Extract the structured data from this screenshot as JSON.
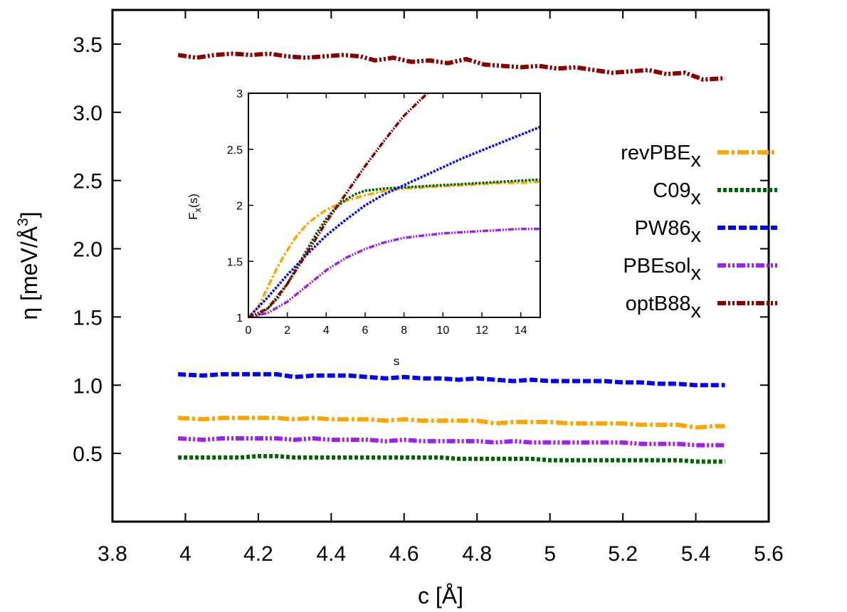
{
  "chart_data": [
    {
      "id": "main",
      "type": "line",
      "title": "",
      "xlabel": "c [Å]",
      "ylabel": {
        "prefix": "η [meV/Å",
        "superscript": "3",
        "suffix": "]"
      },
      "xlim": [
        3.8,
        5.6
      ],
      "ylim": [
        0.0,
        3.75
      ],
      "xticks": [
        "3.8",
        "4",
        "4.2",
        "4.4",
        "4.6",
        "4.8",
        "5",
        "5.2",
        "5.4",
        "5.6"
      ],
      "yticks": [
        "0.5",
        "1.0",
        "1.5",
        "2.0",
        "2.5",
        "3.0",
        "3.5"
      ],
      "legend_position": "right",
      "series": [
        {
          "name": "revPBE",
          "subscript": "x",
          "color": "#ffa500",
          "dash": "dashdot",
          "x": [
            3.98,
            4.05,
            4.1,
            4.15,
            4.2,
            4.25,
            4.3,
            4.35,
            4.4,
            4.45,
            4.5,
            4.55,
            4.6,
            4.65,
            4.7,
            4.75,
            4.8,
            4.85,
            4.9,
            4.95,
            5.0,
            5.05,
            5.1,
            5.15,
            5.2,
            5.25,
            5.3,
            5.35,
            5.4,
            5.45,
            5.48
          ],
          "y": [
            0.76,
            0.75,
            0.76,
            0.76,
            0.76,
            0.76,
            0.75,
            0.76,
            0.75,
            0.75,
            0.75,
            0.74,
            0.75,
            0.74,
            0.74,
            0.74,
            0.74,
            0.72,
            0.73,
            0.73,
            0.73,
            0.72,
            0.72,
            0.72,
            0.72,
            0.71,
            0.71,
            0.71,
            0.69,
            0.7,
            0.7
          ]
        },
        {
          "name": "C09",
          "subscript": "x",
          "color": "#006400",
          "dash": "dotted",
          "x": [
            3.98,
            4.05,
            4.1,
            4.15,
            4.2,
            4.25,
            4.3,
            4.35,
            4.4,
            4.45,
            4.5,
            4.55,
            4.6,
            4.65,
            4.7,
            4.75,
            4.8,
            4.85,
            4.9,
            4.95,
            5.0,
            5.05,
            5.1,
            5.15,
            5.2,
            5.25,
            5.3,
            5.35,
            5.4,
            5.45,
            5.48
          ],
          "y": [
            0.47,
            0.47,
            0.47,
            0.47,
            0.48,
            0.48,
            0.47,
            0.47,
            0.47,
            0.47,
            0.47,
            0.47,
            0.47,
            0.47,
            0.47,
            0.46,
            0.46,
            0.46,
            0.46,
            0.46,
            0.45,
            0.45,
            0.45,
            0.45,
            0.45,
            0.45,
            0.45,
            0.45,
            0.44,
            0.44,
            0.44
          ]
        },
        {
          "name": "PW86",
          "subscript": "x",
          "color": "#0000ff",
          "dash": "dashed",
          "x": [
            3.98,
            4.05,
            4.1,
            4.15,
            4.2,
            4.25,
            4.3,
            4.35,
            4.4,
            4.45,
            4.5,
            4.55,
            4.6,
            4.65,
            4.7,
            4.75,
            4.8,
            4.85,
            4.9,
            4.95,
            5.0,
            5.05,
            5.1,
            5.15,
            5.2,
            5.25,
            5.3,
            5.35,
            5.4,
            5.45,
            5.48
          ],
          "y": [
            1.08,
            1.07,
            1.08,
            1.08,
            1.08,
            1.08,
            1.06,
            1.07,
            1.07,
            1.07,
            1.06,
            1.05,
            1.06,
            1.05,
            1.05,
            1.04,
            1.05,
            1.04,
            1.03,
            1.04,
            1.03,
            1.03,
            1.03,
            1.03,
            1.02,
            1.02,
            1.01,
            1.01,
            1.0,
            1.0,
            1.0
          ]
        },
        {
          "name": "PBEsol",
          "subscript": "x",
          "color": "#a020f0",
          "dash": "dashdotdot",
          "x": [
            3.98,
            4.05,
            4.1,
            4.15,
            4.2,
            4.25,
            4.3,
            4.35,
            4.4,
            4.45,
            4.5,
            4.55,
            4.6,
            4.65,
            4.7,
            4.75,
            4.8,
            4.85,
            4.9,
            4.95,
            5.0,
            5.05,
            5.1,
            5.15,
            5.2,
            5.25,
            5.3,
            5.35,
            5.4,
            5.45,
            5.48
          ],
          "y": [
            0.61,
            0.6,
            0.61,
            0.61,
            0.61,
            0.61,
            0.6,
            0.61,
            0.6,
            0.6,
            0.6,
            0.59,
            0.6,
            0.59,
            0.59,
            0.59,
            0.59,
            0.58,
            0.59,
            0.58,
            0.58,
            0.58,
            0.58,
            0.58,
            0.58,
            0.57,
            0.57,
            0.57,
            0.56,
            0.56,
            0.56
          ]
        },
        {
          "name": "optB88",
          "subscript": "x",
          "color": "#8b0000",
          "dash": "dashdotdot",
          "x": [
            3.98,
            4.03,
            4.08,
            4.13,
            4.18,
            4.23,
            4.28,
            4.33,
            4.38,
            4.43,
            4.48,
            4.52,
            4.57,
            4.62,
            4.67,
            4.72,
            4.77,
            4.82,
            4.87,
            4.92,
            4.97,
            5.02,
            5.07,
            5.12,
            5.17,
            5.22,
            5.27,
            5.32,
            5.37,
            5.42,
            5.48
          ],
          "y": [
            3.42,
            3.4,
            3.42,
            3.43,
            3.42,
            3.43,
            3.41,
            3.4,
            3.41,
            3.42,
            3.41,
            3.38,
            3.4,
            3.37,
            3.38,
            3.36,
            3.39,
            3.35,
            3.34,
            3.33,
            3.34,
            3.32,
            3.33,
            3.31,
            3.29,
            3.3,
            3.31,
            3.28,
            3.29,
            3.24,
            3.25
          ]
        }
      ]
    },
    {
      "id": "inset",
      "type": "line",
      "title": "",
      "xlabel": "s",
      "ylabel": {
        "prefix": "F",
        "subscript": "x",
        "suffix": "(s)"
      },
      "xlim": [
        0,
        15
      ],
      "ylim": [
        1,
        3
      ],
      "xticks": [
        "0",
        "2",
        "4",
        "6",
        "8",
        "10",
        "12",
        "14"
      ],
      "yticks": [
        "1",
        "1.5",
        "2",
        "2.5",
        "3"
      ],
      "series": [
        {
          "name": "revPBE",
          "color": "#ffa500",
          "dash": "dashdot",
          "x": [
            0,
            0.5,
            1,
            1.5,
            2,
            2.5,
            3,
            3.5,
            4,
            5,
            6,
            7,
            8,
            9,
            10,
            11,
            12,
            13,
            14,
            15
          ],
          "y": [
            1.0,
            1.09,
            1.27,
            1.45,
            1.6,
            1.73,
            1.83,
            1.9,
            1.96,
            2.04,
            2.09,
            2.13,
            2.15,
            2.16,
            2.17,
            2.18,
            2.19,
            2.2,
            2.2,
            2.21
          ]
        },
        {
          "name": "C09",
          "color": "#006400",
          "dash": "dotted",
          "x": [
            0,
            0.5,
            1,
            1.5,
            2,
            2.5,
            3,
            3.5,
            4,
            4.5,
            5,
            5.5,
            6,
            7,
            8,
            9,
            10,
            11,
            12,
            13,
            14,
            15
          ],
          "y": [
            1.0,
            1.02,
            1.08,
            1.17,
            1.3,
            1.45,
            1.6,
            1.75,
            1.88,
            1.98,
            2.05,
            2.1,
            2.13,
            2.15,
            2.16,
            2.17,
            2.18,
            2.19,
            2.2,
            2.21,
            2.22,
            2.23
          ]
        },
        {
          "name": "PW86",
          "color": "#0000ff",
          "dash": "dotted",
          "x": [
            0,
            1,
            2,
            3,
            4,
            5,
            6,
            7,
            8,
            9,
            10,
            11,
            12,
            13,
            14,
            15
          ],
          "y": [
            1.0,
            1.18,
            1.38,
            1.56,
            1.73,
            1.87,
            2.0,
            2.1,
            2.18,
            2.26,
            2.34,
            2.42,
            2.49,
            2.56,
            2.63,
            2.7
          ]
        },
        {
          "name": "PBEsol",
          "color": "#a020f0",
          "dash": "dashdotdot",
          "x": [
            0,
            1,
            2,
            3,
            4,
            5,
            6,
            7,
            8,
            9,
            10,
            11,
            12,
            13,
            14,
            15
          ],
          "y": [
            1.0,
            1.04,
            1.14,
            1.28,
            1.42,
            1.53,
            1.61,
            1.67,
            1.71,
            1.73,
            1.75,
            1.76,
            1.77,
            1.78,
            1.79,
            1.79
          ]
        },
        {
          "name": "optB88",
          "color": "#8b0000",
          "dash": "dashdotdot",
          "x": [
            0,
            1,
            2,
            3,
            4,
            5,
            6,
            7,
            8,
            9.2
          ],
          "y": [
            1.0,
            1.08,
            1.3,
            1.57,
            1.85,
            2.1,
            2.35,
            2.58,
            2.8,
            3.0
          ]
        }
      ]
    }
  ]
}
